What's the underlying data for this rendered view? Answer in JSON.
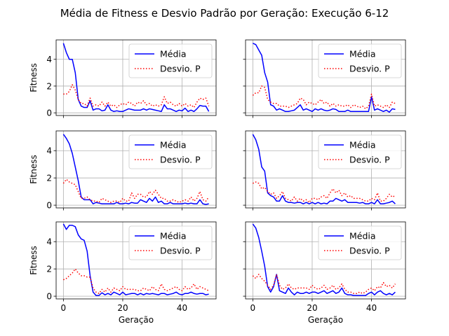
{
  "figure": {
    "title": "Média de Fitness e Desvio Padrão por Geração: Execução 6-12"
  },
  "colors": {
    "mean": "#0000ff",
    "std": "#ff0000",
    "grid": "#b0b0b0",
    "frame": "#000000"
  },
  "chart_data": [
    {
      "type": "line",
      "panel": "row1-left",
      "x": [
        0,
        1,
        2,
        3,
        4,
        5,
        6,
        7,
        8,
        9,
        10,
        11,
        12,
        13,
        14,
        15,
        16,
        17,
        18,
        19,
        20,
        21,
        22,
        23,
        24,
        25,
        26,
        27,
        28,
        29,
        30,
        31,
        32,
        33,
        34,
        35,
        36,
        37,
        38,
        39,
        40,
        41,
        42,
        43,
        44,
        45,
        46,
        47,
        48,
        49
      ],
      "series": [
        {
          "name": "Média",
          "style": "solid",
          "values": [
            5.2,
            4.5,
            4.0,
            4.0,
            3.0,
            1.0,
            0.5,
            0.4,
            0.4,
            0.9,
            0.2,
            0.3,
            0.3,
            0.15,
            0.2,
            0.6,
            0.2,
            0.1,
            0.15,
            0.1,
            0.1,
            0.2,
            0.3,
            0.25,
            0.2,
            0.2,
            0.2,
            0.3,
            0.2,
            0.3,
            0.25,
            0.2,
            0.15,
            0.1,
            0.6,
            0.3,
            0.3,
            0.2,
            0.1,
            0.2,
            0.15,
            0.35,
            0.1,
            0.2,
            0.1,
            0.3,
            0.55,
            0.5,
            0.5,
            0.1
          ]
        },
        {
          "name": "Desvio. P",
          "style": "dotted",
          "values": [
            1.4,
            1.4,
            1.6,
            2.1,
            1.7,
            1.0,
            0.7,
            0.7,
            0.5,
            1.1,
            0.5,
            0.6,
            0.5,
            0.8,
            0.5,
            0.8,
            0.5,
            0.6,
            0.4,
            0.6,
            0.7,
            0.6,
            0.8,
            0.7,
            0.5,
            0.8,
            0.7,
            0.9,
            0.6,
            0.7,
            0.5,
            0.6,
            0.5,
            0.6,
            1.2,
            0.7,
            0.8,
            0.6,
            0.5,
            0.7,
            0.5,
            0.7,
            0.5,
            0.6,
            0.4,
            0.8,
            1.1,
            1.0,
            1.1,
            0.5
          ]
        }
      ],
      "ylabel": "Fitness",
      "xlabel": "",
      "xlim": [
        -2.45,
        51.45
      ],
      "ylim": [
        -0.2,
        5.45
      ],
      "xticks": [
        0,
        20,
        40
      ],
      "yticks": [
        0,
        2,
        4
      ],
      "show_xtick_labels": false,
      "show_ytick_labels": true,
      "grid": true,
      "legend": "top-right"
    },
    {
      "type": "line",
      "panel": "row1-right",
      "x": [
        0,
        1,
        2,
        3,
        4,
        5,
        6,
        7,
        8,
        9,
        10,
        11,
        12,
        13,
        14,
        15,
        16,
        17,
        18,
        19,
        20,
        21,
        22,
        23,
        24,
        25,
        26,
        27,
        28,
        29,
        30,
        31,
        32,
        33,
        34,
        35,
        36,
        37,
        38,
        39,
        40,
        41,
        42,
        43,
        44,
        45,
        46,
        47,
        48
      ],
      "series": [
        {
          "name": "Média",
          "style": "solid",
          "values": [
            5.2,
            5.1,
            4.7,
            4.3,
            3.0,
            2.3,
            0.6,
            0.5,
            0.2,
            0.3,
            0.2,
            0.1,
            0.1,
            0.15,
            0.2,
            0.4,
            0.6,
            0.2,
            0.3,
            0.2,
            0.1,
            0.3,
            0.2,
            0.3,
            0.2,
            0.15,
            0.2,
            0.3,
            0.25,
            0.1,
            0.1,
            0.1,
            0.2,
            0.1,
            0.1,
            0.1,
            0.1,
            0.1,
            0.1,
            0.1,
            1.2,
            0.2,
            0.3,
            0.2,
            0.1,
            0.2,
            0.05,
            0.3,
            0.25
          ]
        },
        {
          "name": "Desvio. P",
          "style": "dotted",
          "values": [
            1.3,
            1.5,
            1.5,
            2.0,
            1.9,
            1.0,
            0.8,
            0.7,
            0.7,
            0.5,
            0.5,
            0.5,
            0.4,
            0.5,
            0.6,
            0.7,
            1.1,
            1.0,
            0.6,
            0.8,
            0.7,
            0.6,
            0.8,
            1.0,
            0.7,
            0.8,
            0.5,
            0.7,
            0.5,
            0.6,
            0.5,
            0.5,
            0.6,
            0.4,
            0.6,
            0.5,
            0.4,
            0.5,
            0.3,
            0.5,
            1.4,
            0.5,
            0.6,
            0.5,
            0.4,
            0.6,
            0.4,
            0.8,
            0.7
          ]
        }
      ],
      "ylabel": "",
      "xlabel": "",
      "xlim": [
        -2.45,
        51.45
      ],
      "ylim": [
        -0.2,
        5.45
      ],
      "xticks": [
        0,
        20,
        40
      ],
      "yticks": [
        0,
        2,
        4
      ],
      "show_xtick_labels": false,
      "show_ytick_labels": false,
      "grid": true,
      "legend": "top-right"
    },
    {
      "type": "line",
      "panel": "row2-left",
      "x": [
        0,
        1,
        2,
        3,
        4,
        5,
        6,
        7,
        8,
        9,
        10,
        11,
        12,
        13,
        14,
        15,
        16,
        17,
        18,
        19,
        20,
        21,
        22,
        23,
        24,
        25,
        26,
        27,
        28,
        29,
        30,
        31,
        32,
        33,
        34,
        35,
        36,
        37,
        38,
        39,
        40,
        41,
        42,
        43,
        44,
        45,
        46,
        47,
        48,
        49
      ],
      "series": [
        {
          "name": "Média",
          "style": "solid",
          "values": [
            5.2,
            4.9,
            4.5,
            3.8,
            2.8,
            1.8,
            0.6,
            0.4,
            0.4,
            0.4,
            0.1,
            0.2,
            0.15,
            0.1,
            0.1,
            0.1,
            0.1,
            0.1,
            0.2,
            0.1,
            0.1,
            0.15,
            0.1,
            0.2,
            0.15,
            0.15,
            0.4,
            0.3,
            0.2,
            0.5,
            0.3,
            0.6,
            0.2,
            0.3,
            0.1,
            0.1,
            0.2,
            0.1,
            0.1,
            0.1,
            0.1,
            0.15,
            0.1,
            0.15,
            0.1,
            0.1,
            0.4,
            0.1,
            0.05,
            0.1
          ]
        },
        {
          "name": "Desvio. P",
          "style": "dotted",
          "values": [
            1.6,
            1.9,
            1.7,
            1.6,
            1.5,
            1.0,
            0.5,
            0.5,
            0.6,
            0.4,
            0.3,
            0.3,
            0.2,
            0.5,
            0.4,
            0.3,
            0.2,
            0.3,
            0.3,
            0.2,
            0.5,
            0.3,
            0.3,
            0.9,
            0.5,
            0.8,
            0.8,
            0.6,
            0.6,
            1.0,
            0.8,
            1.1,
            0.8,
            0.5,
            0.5,
            0.3,
            0.3,
            0.4,
            0.3,
            0.2,
            0.3,
            0.4,
            0.3,
            0.6,
            0.3,
            0.5,
            1.0,
            0.4,
            0.3,
            0.6
          ]
        }
      ],
      "ylabel": "Fitness",
      "xlabel": "",
      "xlim": [
        -2.45,
        51.45
      ],
      "ylim": [
        -0.2,
        5.45
      ],
      "xticks": [
        0,
        20,
        40
      ],
      "yticks": [
        0,
        2,
        4
      ],
      "show_xtick_labels": false,
      "show_ytick_labels": true,
      "grid": true,
      "legend": "top-right"
    },
    {
      "type": "line",
      "panel": "row2-right",
      "x": [
        0,
        1,
        2,
        3,
        4,
        5,
        6,
        7,
        8,
        9,
        10,
        11,
        12,
        13,
        14,
        15,
        16,
        17,
        18,
        19,
        20,
        21,
        22,
        23,
        24,
        25,
        26,
        27,
        28,
        29,
        30,
        31,
        32,
        33,
        34,
        35,
        36,
        37,
        38,
        39,
        40,
        41,
        42,
        43,
        44,
        45,
        46,
        47,
        48
      ],
      "series": [
        {
          "name": "Média",
          "style": "solid",
          "values": [
            5.2,
            4.8,
            4.1,
            2.8,
            2.5,
            0.9,
            0.7,
            0.6,
            0.3,
            0.3,
            0.7,
            0.3,
            0.2,
            0.2,
            0.15,
            0.2,
            0.2,
            0.1,
            0.2,
            0.1,
            0.2,
            0.1,
            0.2,
            0.1,
            0.15,
            0.1,
            0.3,
            0.3,
            0.5,
            0.4,
            0.3,
            0.4,
            0.2,
            0.2,
            0.2,
            0.2,
            0.15,
            0.2,
            0.1,
            0.1,
            0.2,
            0.1,
            0.4,
            0.1,
            0.1,
            0.15,
            0.2,
            0.3,
            0.1
          ]
        },
        {
          "name": "Desvio. P",
          "style": "dotted",
          "values": [
            1.6,
            1.7,
            1.6,
            1.2,
            1.3,
            1.0,
            0.8,
            0.9,
            0.5,
            0.7,
            1.0,
            0.5,
            0.4,
            0.3,
            0.6,
            0.3,
            0.5,
            0.3,
            0.4,
            0.2,
            0.5,
            0.5,
            0.4,
            0.6,
            0.7,
            0.5,
            0.9,
            1.2,
            0.9,
            1.1,
            0.7,
            0.9,
            0.6,
            0.7,
            0.5,
            0.5,
            0.5,
            0.4,
            0.3,
            0.3,
            0.5,
            0.4,
            0.9,
            0.3,
            0.3,
            0.5,
            0.8,
            0.6,
            0.7
          ]
        }
      ],
      "ylabel": "",
      "xlabel": "",
      "xlim": [
        -2.45,
        51.45
      ],
      "ylim": [
        -0.2,
        5.45
      ],
      "xticks": [
        0,
        20,
        40
      ],
      "yticks": [
        0,
        2,
        4
      ],
      "show_xtick_labels": false,
      "show_ytick_labels": false,
      "grid": true,
      "legend": "top-right"
    },
    {
      "type": "line",
      "panel": "row3-left",
      "x": [
        0,
        1,
        2,
        3,
        4,
        5,
        6,
        7,
        8,
        9,
        10,
        11,
        12,
        13,
        14,
        15,
        16,
        17,
        18,
        19,
        20,
        21,
        22,
        23,
        24,
        25,
        26,
        27,
        28,
        29,
        30,
        31,
        32,
        33,
        34,
        35,
        36,
        37,
        38,
        39,
        40,
        41,
        42,
        43,
        44,
        45,
        46,
        47,
        48,
        49
      ],
      "series": [
        {
          "name": "Média",
          "style": "solid",
          "values": [
            5.3,
            4.9,
            5.2,
            5.2,
            5.1,
            4.5,
            4.2,
            4.1,
            3.3,
            1.5,
            0.3,
            0.05,
            0.05,
            0.25,
            0.1,
            0.2,
            0.1,
            0.3,
            0.2,
            0.1,
            0.3,
            0.1,
            0.15,
            0.2,
            0.2,
            0.1,
            0.2,
            0.1,
            0.2,
            0.15,
            0.2,
            0.15,
            0.1,
            0.2,
            0.2,
            0.1,
            0.15,
            0.2,
            0.3,
            0.15,
            0.1,
            0.2,
            0.2,
            0.3,
            0.2,
            0.15,
            0.2,
            0.2,
            0.1,
            0.15
          ]
        },
        {
          "name": "Desvio. P",
          "style": "dotted",
          "values": [
            1.2,
            1.3,
            1.5,
            1.7,
            2.0,
            1.7,
            1.5,
            1.5,
            1.4,
            1.4,
            0.6,
            0.3,
            0.2,
            0.5,
            0.3,
            0.6,
            0.3,
            0.6,
            0.5,
            0.4,
            0.7,
            0.5,
            0.5,
            0.5,
            0.5,
            0.4,
            0.4,
            0.6,
            0.5,
            0.4,
            0.7,
            0.5,
            0.4,
            0.9,
            0.5,
            0.4,
            0.5,
            0.6,
            0.7,
            0.5,
            0.4,
            0.7,
            0.5,
            0.6,
            0.9,
            0.5,
            0.7,
            0.6,
            0.5,
            0.4
          ]
        }
      ],
      "ylabel": "Fitness",
      "xlabel": "Geração",
      "xlim": [
        -2.45,
        51.45
      ],
      "ylim": [
        -0.2,
        5.45
      ],
      "xticks": [
        0,
        20,
        40
      ],
      "yticks": [
        0,
        2,
        4
      ],
      "show_xtick_labels": true,
      "show_ytick_labels": true,
      "grid": true,
      "legend": "top-right"
    },
    {
      "type": "line",
      "panel": "row3-right",
      "x": [
        0,
        1,
        2,
        3,
        4,
        5,
        6,
        7,
        8,
        9,
        10,
        11,
        12,
        13,
        14,
        15,
        16,
        17,
        18,
        19,
        20,
        21,
        22,
        23,
        24,
        25,
        26,
        27,
        28,
        29,
        30,
        31,
        32,
        33,
        34,
        35,
        36,
        37,
        38,
        39,
        40,
        41,
        42,
        43,
        44,
        45,
        46,
        47,
        48
      ],
      "series": [
        {
          "name": "Média",
          "style": "solid",
          "values": [
            5.3,
            5.0,
            4.3,
            3.3,
            2.2,
            0.7,
            0.3,
            0.7,
            1.6,
            0.4,
            0.3,
            0.2,
            0.6,
            0.3,
            0.1,
            0.3,
            0.2,
            0.2,
            0.3,
            0.2,
            0.3,
            0.3,
            0.2,
            0.3,
            0.4,
            0.2,
            0.3,
            0.4,
            0.2,
            0.3,
            0.6,
            0.2,
            0.1,
            0.1,
            0.05,
            0.05,
            0.05,
            0.05,
            0.05,
            0.2,
            0.3,
            0.1,
            0.3,
            0.4,
            0.2,
            0.1,
            0.2,
            0.1,
            0.3
          ]
        },
        {
          "name": "Desvio. P",
          "style": "dotted",
          "values": [
            1.5,
            1.3,
            1.6,
            1.3,
            1.1,
            0.8,
            0.5,
            0.8,
            1.6,
            0.8,
            0.5,
            0.6,
            0.9,
            0.6,
            0.5,
            0.6,
            0.6,
            0.6,
            0.6,
            0.5,
            0.8,
            0.6,
            0.5,
            0.6,
            0.8,
            0.5,
            0.6,
            0.8,
            0.5,
            0.6,
            0.9,
            0.5,
            0.3,
            0.3,
            0.2,
            0.2,
            0.3,
            0.2,
            0.3,
            0.5,
            0.6,
            0.4,
            0.7,
            0.6,
            1.0,
            0.7,
            0.8,
            0.6,
            0.9
          ]
        }
      ],
      "ylabel": "",
      "xlabel": "Geração",
      "xlim": [
        -2.45,
        51.45
      ],
      "ylim": [
        -0.2,
        5.45
      ],
      "xticks": [
        0,
        20,
        40
      ],
      "yticks": [
        0,
        2,
        4
      ],
      "show_xtick_labels": true,
      "show_ytick_labels": false,
      "grid": true,
      "legend": "top-right"
    }
  ]
}
